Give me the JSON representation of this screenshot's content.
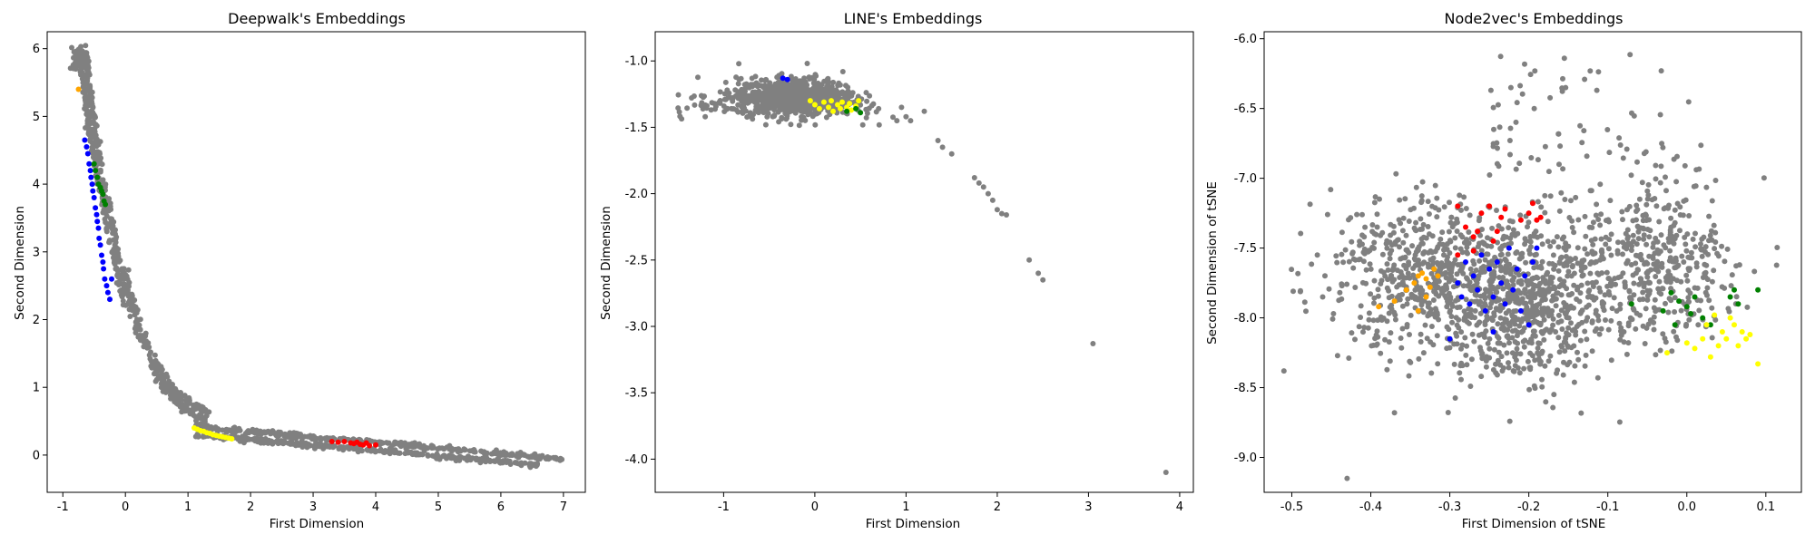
{
  "chart_data": [
    {
      "type": "scatter",
      "title": "Deepwalk's Embeddings",
      "xlabel": "First Dimension",
      "ylabel": "Second Dimension",
      "xlim": [
        -1.25,
        7.35
      ],
      "ylim": [
        -0.55,
        6.25
      ],
      "xticks": [
        "-1",
        "0",
        "1",
        "2",
        "3",
        "4",
        "5",
        "6",
        "7"
      ],
      "yticks": [
        "0",
        "1",
        "2",
        "3",
        "4",
        "5",
        "6"
      ],
      "grid": false,
      "series": [
        {
          "color": "#808080",
          "points_summary": "two parallel curved bands: from (-0.8, 6.0) down to (0, 2.3), then bending to (1.2, 0.45) and spreading to (7.0, -0.05) and (6.5, -0.2)"
        },
        {
          "color": "#0000ff",
          "x": [
            -0.65,
            -0.62,
            -0.6,
            -0.58,
            -0.56,
            -0.55,
            -0.53,
            -0.52,
            -0.5,
            -0.48,
            -0.46,
            -0.45,
            -0.43,
            -0.42,
            -0.4,
            -0.38,
            -0.36,
            -0.35,
            -0.33,
            -0.3,
            -0.28,
            -0.25,
            -0.22
          ],
          "y": [
            4.65,
            4.55,
            4.45,
            4.3,
            4.2,
            4.1,
            4.0,
            3.9,
            3.8,
            3.65,
            3.55,
            3.45,
            3.35,
            3.2,
            3.1,
            2.95,
            2.85,
            2.75,
            2.6,
            2.5,
            2.4,
            2.3,
            2.6
          ]
        },
        {
          "color": "#008000",
          "x": [
            -0.5,
            -0.48,
            -0.45,
            -0.43,
            -0.4,
            -0.38,
            -0.36,
            -0.34,
            -0.32
          ],
          "y": [
            4.3,
            4.2,
            4.1,
            4.0,
            3.95,
            3.9,
            3.85,
            3.75,
            3.7
          ]
        },
        {
          "color": "#ffa500",
          "x": [
            -0.75
          ],
          "y": [
            5.4
          ]
        },
        {
          "color": "#ffff00",
          "x": [
            1.1,
            1.15,
            1.2,
            1.25,
            1.3,
            1.35,
            1.4,
            1.45,
            1.5,
            1.55,
            1.6,
            1.65,
            1.7
          ],
          "y": [
            0.4,
            0.38,
            0.36,
            0.35,
            0.33,
            0.32,
            0.3,
            0.29,
            0.28,
            0.27,
            0.26,
            0.25,
            0.24
          ]
        },
        {
          "color": "#ff0000",
          "x": [
            3.3,
            3.4,
            3.5,
            3.6,
            3.65,
            3.7,
            3.75,
            3.8,
            3.85,
            3.9,
            4.0
          ],
          "y": [
            0.2,
            0.19,
            0.2,
            0.18,
            0.17,
            0.19,
            0.16,
            0.15,
            0.18,
            0.14,
            0.15
          ]
        }
      ]
    },
    {
      "type": "scatter",
      "title": "LINE's Embeddings",
      "xlabel": "First Dimension",
      "ylabel": "Second Dimension",
      "xlim": [
        -1.75,
        4.15
      ],
      "ylim": [
        -4.25,
        -0.78
      ],
      "xticks": [
        "-1",
        "0",
        "1",
        "2",
        "3",
        "4"
      ],
      "yticks": [
        "-1.0",
        "-1.5",
        "-2.0",
        "-2.5",
        "-3.0",
        "-3.5",
        "-4.0"
      ],
      "grid": false,
      "series": [
        {
          "color": "#808080",
          "points_summary": "dense blob centered near (0, -1.25), x from -1.5 to 0.9, plus a sparse tail through (1.2, -1.35), (1.8, -1.9), (2.5, -2.65), (3.05, -3.13), (3.85, -4.1)"
        },
        {
          "color": "#ffff00",
          "x": [
            -0.05,
            0.0,
            0.05,
            0.1,
            0.15,
            0.18,
            0.2,
            0.25,
            0.28,
            0.3,
            0.35,
            0.38,
            0.4,
            0.45,
            0.48
          ],
          "y": [
            -1.3,
            -1.33,
            -1.36,
            -1.31,
            -1.35,
            -1.3,
            -1.38,
            -1.33,
            -1.36,
            -1.31,
            -1.35,
            -1.32,
            -1.37,
            -1.34,
            -1.3
          ]
        },
        {
          "color": "#008000",
          "x": [
            0.35,
            0.45,
            0.5
          ],
          "y": [
            -1.38,
            -1.36,
            -1.39
          ]
        },
        {
          "color": "#0000ff",
          "x": [
            -0.3,
            -0.35
          ],
          "y": [
            -1.14,
            -1.13
          ]
        }
      ]
    },
    {
      "type": "scatter",
      "title": "Node2vec's Embeddings",
      "xlabel": "First Dimension of tSNE",
      "ylabel": "Second Dimension of tSNE",
      "xlim": [
        -0.535,
        0.145
      ],
      "ylim": [
        -9.25,
        -5.95
      ],
      "xticks": [
        "-0.5",
        "-0.4",
        "-0.3",
        "-0.2",
        "-0.1",
        "0.0",
        "0.1"
      ],
      "yticks": [
        "-6.0",
        "-6.5",
        "-7.0",
        "-7.5",
        "-8.0",
        "-8.5",
        "-9.0"
      ],
      "grid": false,
      "series": [
        {
          "color": "#808080",
          "points_summary": "broad cloud centered near (-0.2, -7.75), x from -0.51 to 0.12, y from -9.15 to -6.05"
        },
        {
          "color": "#ff0000",
          "x": [
            -0.29,
            -0.28,
            -0.27,
            -0.265,
            -0.26,
            -0.25,
            -0.245,
            -0.24,
            -0.235,
            -0.23,
            -0.21,
            -0.2,
            -0.195,
            -0.19,
            -0.185,
            -0.29,
            -0.27
          ],
          "y": [
            -7.2,
            -7.35,
            -7.42,
            -7.38,
            -7.25,
            -7.2,
            -7.45,
            -7.38,
            -7.28,
            -7.22,
            -7.3,
            -7.25,
            -7.18,
            -7.3,
            -7.28,
            -7.55,
            -7.52
          ]
        },
        {
          "color": "#0000ff",
          "x": [
            -0.29,
            -0.285,
            -0.28,
            -0.275,
            -0.27,
            -0.265,
            -0.26,
            -0.255,
            -0.25,
            -0.245,
            -0.24,
            -0.235,
            -0.23,
            -0.225,
            -0.22,
            -0.215,
            -0.21,
            -0.205,
            -0.2,
            -0.195,
            -0.19,
            -0.3,
            -0.245
          ],
          "y": [
            -7.75,
            -7.85,
            -7.6,
            -7.9,
            -7.7,
            -7.8,
            -7.55,
            -7.95,
            -7.65,
            -7.85,
            -7.6,
            -7.75,
            -7.9,
            -7.5,
            -7.8,
            -7.65,
            -7.95,
            -7.7,
            -8.05,
            -7.6,
            -7.5,
            -8.15,
            -8.1
          ]
        },
        {
          "color": "#ffa500",
          "x": [
            -0.39,
            -0.37,
            -0.355,
            -0.345,
            -0.34,
            -0.335,
            -0.33,
            -0.325,
            -0.32,
            -0.315,
            -0.34,
            -0.33
          ],
          "y": [
            -7.92,
            -7.88,
            -7.8,
            -7.75,
            -7.7,
            -7.68,
            -7.72,
            -7.78,
            -7.65,
            -7.7,
            -7.95,
            -7.85
          ]
        },
        {
          "color": "#008000",
          "x": [
            -0.07,
            -0.03,
            -0.02,
            -0.01,
            0.0,
            0.005,
            0.01,
            0.02,
            0.055,
            0.06,
            0.065,
            0.09,
            -0.015,
            0.03
          ],
          "y": [
            -7.9,
            -7.95,
            -7.82,
            -7.88,
            -7.92,
            -7.97,
            -7.85,
            -8.0,
            -7.85,
            -7.8,
            -7.9,
            -7.8,
            -8.05,
            -8.05
          ]
        },
        {
          "color": "#ffff00",
          "x": [
            -0.025,
            0.0,
            0.01,
            0.02,
            0.03,
            0.04,
            0.045,
            0.05,
            0.055,
            0.06,
            0.065,
            0.07,
            0.075,
            0.08,
            0.09,
            0.035,
            0.025
          ],
          "y": [
            -8.25,
            -8.18,
            -8.22,
            -8.15,
            -8.28,
            -8.2,
            -8.1,
            -8.15,
            -8.0,
            -8.05,
            -8.2,
            -8.1,
            -8.15,
            -8.12,
            -8.33,
            -7.98,
            -8.05
          ]
        }
      ]
    }
  ]
}
